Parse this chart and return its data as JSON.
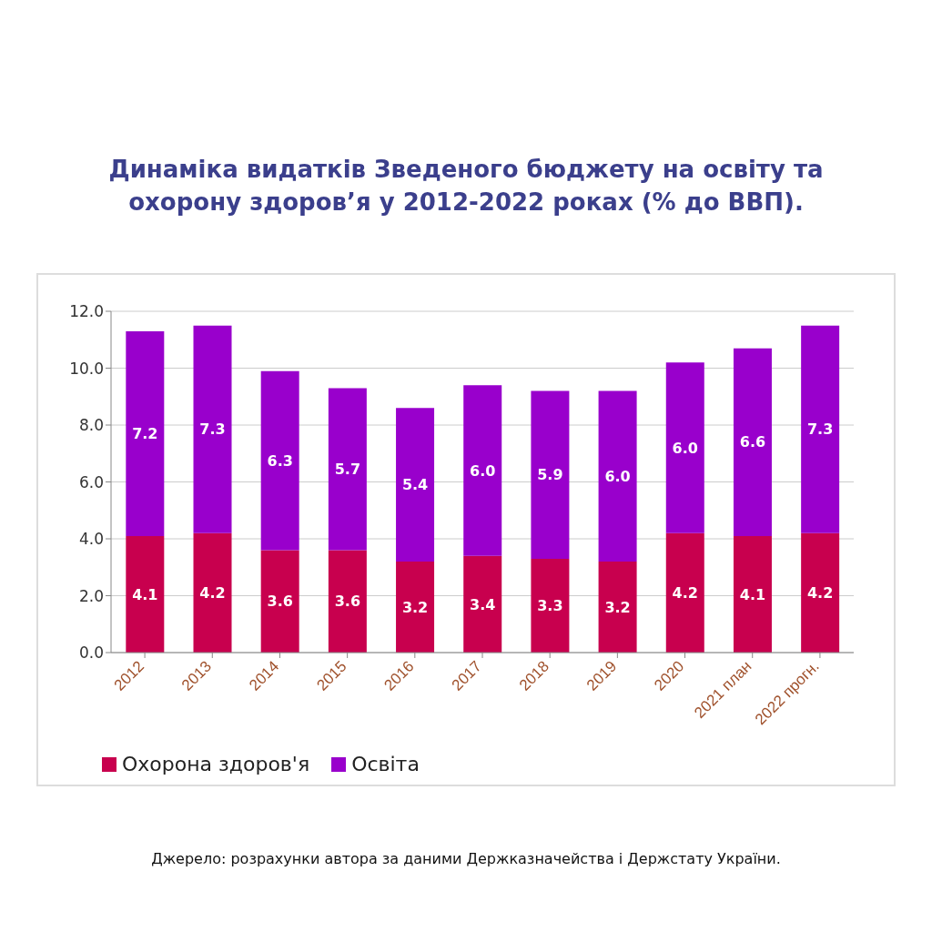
{
  "chart_data": {
    "type": "bar",
    "stacked": true,
    "title": "Динаміка видатків Зведеного бюджету на освіту та охорону здоров’я у 2012-2022 роках (% до ВВП).",
    "categories": [
      "2012",
      "2013",
      "2014",
      "2015",
      "2016",
      "2017",
      "2018",
      "2019",
      "2020",
      "2021 план",
      "2022 прогн."
    ],
    "series": [
      {
        "name": "Охорона здоров'я",
        "color": "#c8004e",
        "values": [
          4.1,
          4.2,
          3.6,
          3.6,
          3.2,
          3.4,
          3.3,
          3.2,
          4.2,
          4.1,
          4.2
        ],
        "value_labels": [
          "4.1",
          "4.2",
          "3.6",
          "3.6",
          "3.2",
          "3.4",
          "3.3",
          "3.2",
          "4.2",
          "4.1",
          "4.2"
        ]
      },
      {
        "name": "Освіта",
        "color": "#9900cc",
        "values": [
          7.2,
          7.3,
          6.3,
          5.7,
          5.4,
          6.0,
          5.9,
          6.0,
          6.0,
          6.6,
          7.3
        ],
        "value_labels": [
          "7.2",
          "7.3",
          "6.3",
          "5.7",
          "5.4",
          "6.0",
          "5.9",
          "6.0",
          "6.0",
          "6.6",
          "7.3"
        ]
      }
    ],
    "ylim": [
      0,
      12
    ],
    "yticks": [
      {
        "value": 0,
        "label": "0.0"
      },
      {
        "value": 2,
        "label": "2.0"
      },
      {
        "value": 4,
        "label": "4.0"
      },
      {
        "value": 6,
        "label": "6.0"
      },
      {
        "value": 8,
        "label": "8.0"
      },
      {
        "value": 10,
        "label": "10.0"
      },
      {
        "value": 12,
        "label": "12.0"
      }
    ],
    "grid": "y",
    "legend": "bottom left",
    "annotations": [
      "Джерело: розрахунки автора за даними Держказначейства і Держстату України."
    ]
  }
}
